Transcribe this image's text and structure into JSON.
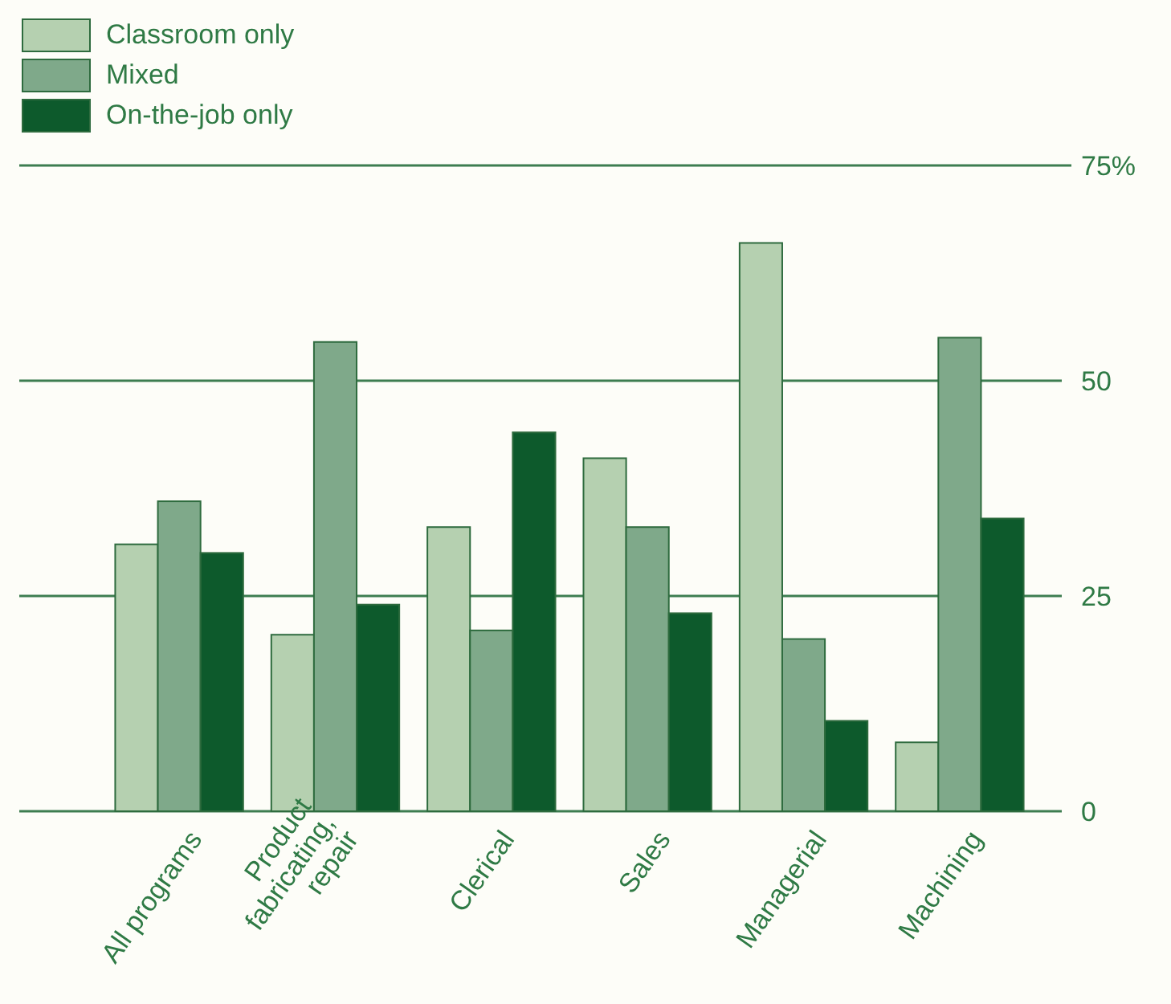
{
  "chart_data": {
    "type": "bar",
    "categories": [
      "All programs",
      "Product fabricating, repair",
      "Clerical",
      "Sales",
      "Managerial",
      "Machining"
    ],
    "series": [
      {
        "name": "Classroom only",
        "color": "#b5d0b0",
        "values": [
          31,
          20.5,
          33,
          41,
          66,
          8
        ]
      },
      {
        "name": "Mixed",
        "color": "#7fa98a",
        "values": [
          36,
          54.5,
          21,
          33,
          20,
          55
        ]
      },
      {
        "name": "On-the-job only",
        "color": "#0d5a2c",
        "values": [
          30,
          24,
          44,
          23,
          10.5,
          34
        ]
      }
    ],
    "ylim": [
      0,
      75
    ],
    "yticks": [
      0,
      25,
      50,
      {
        "value": 75,
        "label": "75%"
      }
    ],
    "grid": "y",
    "legend": "top left"
  }
}
